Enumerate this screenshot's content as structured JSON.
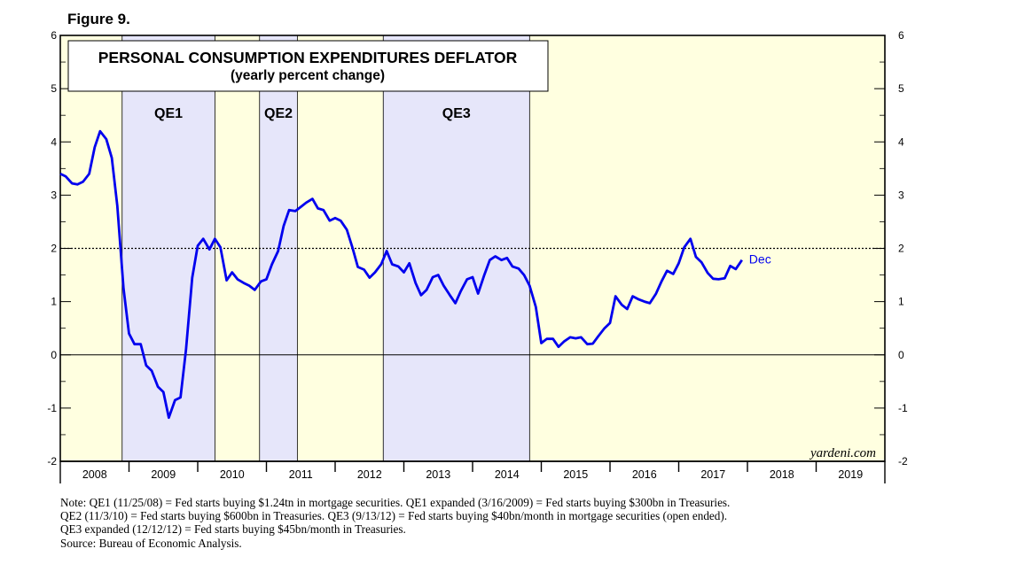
{
  "figure_label": "Figure 9.",
  "chart_data": {
    "type": "line",
    "title": "PERSONAL CONSUMPTION EXPENDITURES DEFLATOR",
    "subtitle": "(yearly percent change)",
    "x_tick_labels": [
      "2008",
      "2009",
      "2010",
      "2011",
      "2012",
      "2013",
      "2014",
      "2015",
      "2016",
      "2017",
      "2018",
      "2019"
    ],
    "x_range": [
      2008.0,
      2020.0
    ],
    "ylim": [
      -2,
      6
    ],
    "y_ticks": [
      "-2",
      "-1",
      "0",
      "1",
      "2",
      "3",
      "4",
      "5",
      "6"
    ],
    "reference_line": 2,
    "shaded_periods": [
      {
        "label": "QE1",
        "start": 2008.9,
        "end": 2010.25
      },
      {
        "label": "QE2",
        "start": 2010.9,
        "end": 2011.45
      },
      {
        "label": "QE3",
        "start": 2012.7,
        "end": 2014.83
      }
    ],
    "series": [
      {
        "name": "PCE Deflator",
        "end_label": "Dec",
        "color": "#0000ee",
        "x": [
          2008.0,
          2008.08,
          2008.17,
          2008.25,
          2008.33,
          2008.42,
          2008.5,
          2008.58,
          2008.67,
          2008.75,
          2008.83,
          2008.92,
          2009.0,
          2009.08,
          2009.17,
          2009.25,
          2009.33,
          2009.42,
          2009.5,
          2009.58,
          2009.67,
          2009.75,
          2009.83,
          2009.92,
          2010.0,
          2010.08,
          2010.17,
          2010.25,
          2010.33,
          2010.42,
          2010.5,
          2010.58,
          2010.67,
          2010.75,
          2010.83,
          2010.92,
          2011.0,
          2011.08,
          2011.17,
          2011.25,
          2011.33,
          2011.42,
          2011.5,
          2011.58,
          2011.67,
          2011.75,
          2011.83,
          2011.92,
          2012.0,
          2012.08,
          2012.17,
          2012.25,
          2012.33,
          2012.42,
          2012.5,
          2012.58,
          2012.67,
          2012.75,
          2012.83,
          2012.92,
          2013.0,
          2013.08,
          2013.17,
          2013.25,
          2013.33,
          2013.42,
          2013.5,
          2013.58,
          2013.67,
          2013.75,
          2013.83,
          2013.92,
          2014.0,
          2014.08,
          2014.17,
          2014.25,
          2014.33,
          2014.42,
          2014.5,
          2014.58,
          2014.67,
          2014.75,
          2014.83,
          2014.92,
          2015.0,
          2015.08,
          2015.17,
          2015.25,
          2015.33,
          2015.42,
          2015.5,
          2015.58,
          2015.67,
          2015.75,
          2015.83,
          2015.92,
          2016.0,
          2016.08,
          2016.17,
          2016.25,
          2016.33,
          2016.42,
          2016.5,
          2016.58,
          2016.67,
          2016.75,
          2016.83,
          2016.92,
          2017.0,
          2017.08,
          2017.17,
          2017.25,
          2017.33,
          2017.42,
          2017.5,
          2017.58,
          2017.67,
          2017.75,
          2017.83,
          2017.92
        ],
        "values": [
          3.4,
          3.35,
          3.22,
          3.2,
          3.25,
          3.4,
          3.9,
          4.2,
          4.05,
          3.7,
          2.8,
          1.25,
          0.4,
          0.2,
          0.2,
          -0.2,
          -0.3,
          -0.6,
          -0.7,
          -1.18,
          -0.85,
          -0.8,
          0.1,
          1.45,
          2.05,
          2.18,
          1.98,
          2.18,
          2.02,
          1.4,
          1.55,
          1.42,
          1.35,
          1.3,
          1.22,
          1.38,
          1.42,
          1.7,
          1.95,
          2.42,
          2.72,
          2.7,
          2.78,
          2.86,
          2.93,
          2.75,
          2.72,
          2.52,
          2.57,
          2.52,
          2.35,
          2.02,
          1.65,
          1.6,
          1.45,
          1.55,
          1.7,
          1.95,
          1.7,
          1.66,
          1.55,
          1.72,
          1.35,
          1.12,
          1.22,
          1.46,
          1.5,
          1.3,
          1.12,
          0.97,
          1.2,
          1.42,
          1.46,
          1.15,
          1.5,
          1.78,
          1.85,
          1.78,
          1.82,
          1.66,
          1.62,
          1.5,
          1.3,
          0.9,
          0.22,
          0.3,
          0.3,
          0.15,
          0.25,
          0.33,
          0.31,
          0.33,
          0.2,
          0.21,
          0.35,
          0.5,
          0.6,
          1.1,
          0.94,
          0.86,
          1.1,
          1.04,
          1.0,
          0.97,
          1.15,
          1.38,
          1.58,
          1.52,
          1.72,
          2.02,
          2.18,
          1.84,
          1.74,
          1.54,
          1.43,
          1.42,
          1.44,
          1.67,
          1.61,
          1.78
        ]
      }
    ],
    "annotations": {
      "source_watermark": "yardeni.com"
    }
  },
  "notes": [
    "Note: QE1 (11/25/08) = Fed starts buying $1.24tn in mortgage securities. QE1 expanded (3/16/2009) = Fed starts buying $300bn in Treasuries.",
    "QE2 (11/3/10) = Fed starts buying $600bn in Treasuries. QE3 (9/13/12) = Fed starts buying $40bn/month in mortgage securities (open ended).",
    "QE3 expanded (12/12/12) = Fed starts buying $45bn/month in Treasuries.",
    "Source: Bureau of Economic Analysis."
  ]
}
